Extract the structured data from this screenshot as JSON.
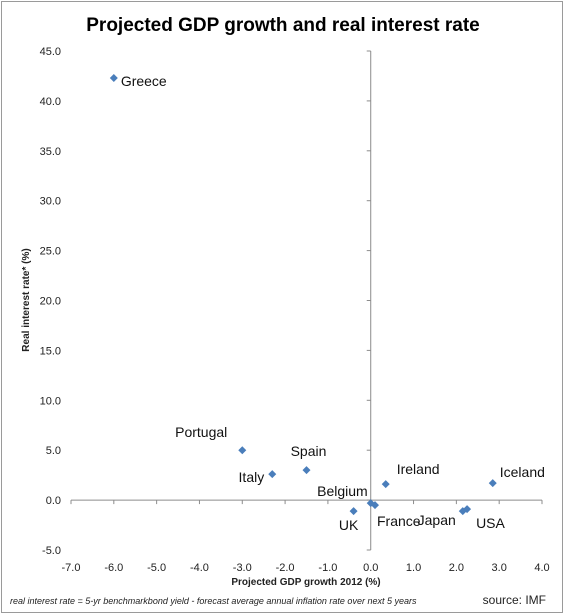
{
  "chart_data": {
    "type": "scatter",
    "title": "Projected GDP growth and real interest rate",
    "xlabel": "Projected GDP growth 2012 (%)",
    "ylabel": "Real interest rate* (%)",
    "xlim": [
      -7.0,
      4.0
    ],
    "ylim": [
      -5.0,
      45.0
    ],
    "x_ticks": [
      "-7.0",
      "-6.0",
      "-5.0",
      "-4.0",
      "-3.0",
      "-2.0",
      "-1.0",
      "0.0",
      "1.0",
      "2.0",
      "3.0",
      "4.0"
    ],
    "y_ticks": [
      "-5.0",
      "0.0",
      "5.0",
      "10.0",
      "15.0",
      "20.0",
      "25.0",
      "30.0",
      "35.0",
      "40.0",
      "45.0"
    ],
    "grid": false,
    "marker_color": "#4a7ebb",
    "points": [
      {
        "label": "Greece",
        "x": -6.0,
        "y": 42.3
      },
      {
        "label": "Portugal",
        "x": -3.0,
        "y": 5.0
      },
      {
        "label": "Italy",
        "x": -2.3,
        "y": 2.6
      },
      {
        "label": "Spain",
        "x": -1.5,
        "y": 3.0
      },
      {
        "label": "UK",
        "x": -0.4,
        "y": -1.1
      },
      {
        "label": "Belgium",
        "x": 0.0,
        "y": -0.3
      },
      {
        "label": "France",
        "x": 0.1,
        "y": -0.5
      },
      {
        "label": "Ireland",
        "x": 0.35,
        "y": 1.6
      },
      {
        "label": "Japan",
        "x": 2.15,
        "y": -1.1
      },
      {
        "label": "USA",
        "x": 2.25,
        "y": -0.9
      },
      {
        "label": "Iceland",
        "x": 2.85,
        "y": 1.7
      }
    ],
    "footnote": "real interest rate = 5-yr benchmarkbond yield - forecast average annual inflation rate over next 5 years",
    "source": "source: IMF"
  }
}
